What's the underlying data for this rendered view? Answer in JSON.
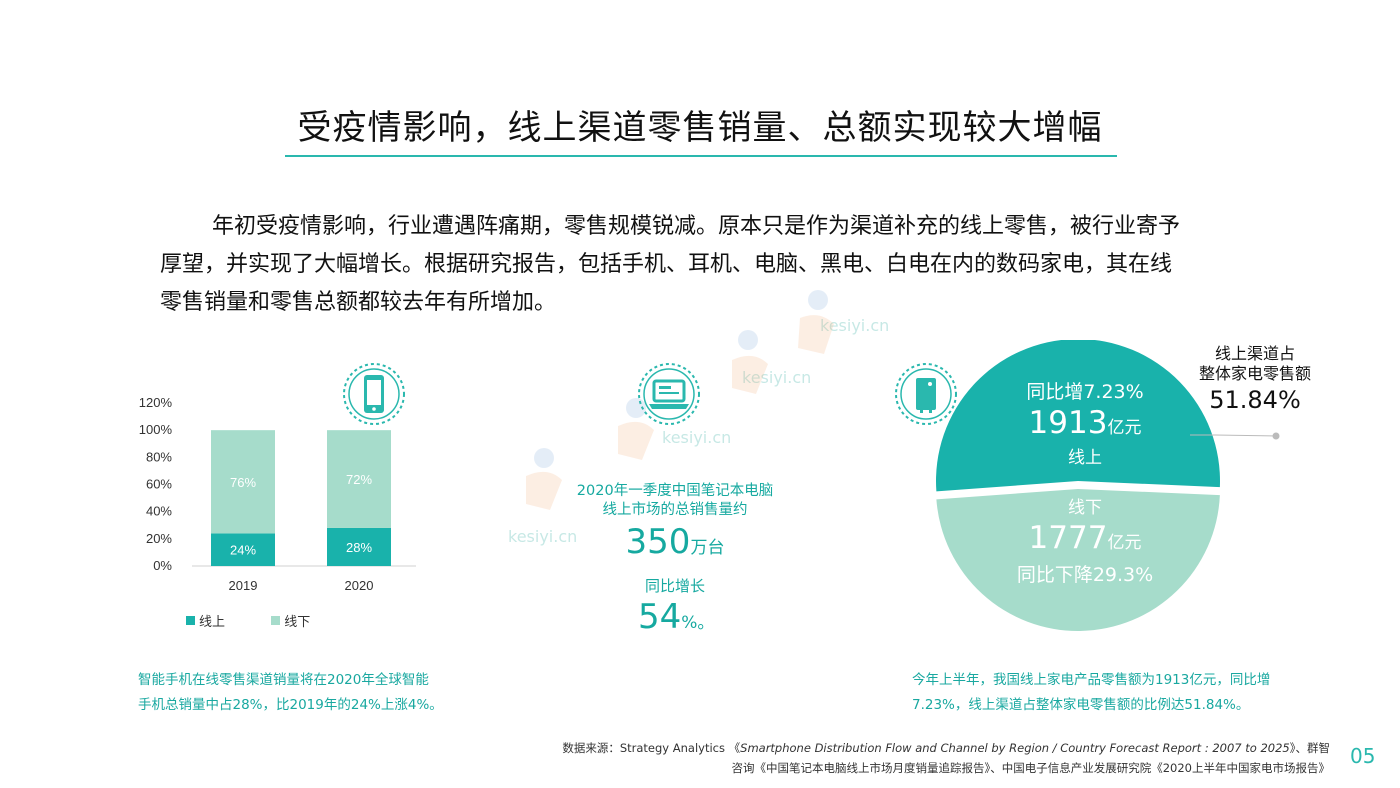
{
  "title": "受疫情影响，线上渠道零售销量、总额实现较大增幅",
  "paragraph": {
    "line1": "年初受疫情影响，行业遭遇阵痛期，零售规模锐减。原本只是作为渠道补充的线上零售，被行业寄予",
    "line2": "厚望，并实现了大幅增长。根据研究报告，包括手机、耳机、电脑、黑电、白电在内的数码家电，其在线",
    "line3": "零售销量和零售总额都较去年有所增加。"
  },
  "icons": {
    "left": "smartphone-icon",
    "middle": "laptop-icon",
    "right": "appliance-icon"
  },
  "watermark": "kesiyi.cn",
  "colors": {
    "accent": "#16a9a0",
    "online": "#19b2ab",
    "offline": "#a6dccb",
    "text": "#1a1a1a"
  },
  "chart_data": [
    {
      "type": "bar",
      "stacked": true,
      "categories": [
        "2019",
        "2020"
      ],
      "series": [
        {
          "name": "线上",
          "values": [
            24,
            28
          ],
          "labels": [
            "24%",
            "28%"
          ],
          "color": "#19b2ab"
        },
        {
          "name": "线下",
          "values": [
            76,
            72
          ],
          "labels": [
            "76%",
            "72%"
          ],
          "color": "#a6dccb"
        }
      ],
      "yticks": [
        "120%",
        "100%",
        "80%",
        "60%",
        "40%",
        "20%",
        "0%"
      ],
      "ylim": [
        0,
        120
      ],
      "legend": "bottom-left"
    },
    {
      "type": "pie",
      "slices": [
        {
          "name": "线上",
          "value": 1913,
          "share": 51.84,
          "color": "#19b2ab"
        },
        {
          "name": "线下",
          "value": 1777,
          "share": 48.16,
          "color": "#a6dccb"
        }
      ],
      "online": {
        "line1": "同比增7.23%",
        "amount": "1913",
        "unit": "亿元",
        "label": "线上"
      },
      "offline": {
        "label": "线下",
        "amount": "1777",
        "unit": "亿元",
        "line3": "同比下降29.3%"
      },
      "callout": {
        "line1": "线上渠道占",
        "line2": "整体家电零售额",
        "value": "51.84%"
      }
    }
  ],
  "middle": {
    "desc_line1": "2020年一季度中国笔记本电脑",
    "desc_line2": "线上市场的总销售量约",
    "big_value": "350",
    "big_unit": "万台",
    "growth_label": "同比增长",
    "growth_value": "54",
    "growth_unit": "%。"
  },
  "captions": {
    "left_line1": "智能手机在线零售渠道销量将在2020年全球智能",
    "left_line2": "手机总销量中占28%，比2019年的24%上涨4%。",
    "right_line1": "今年上半年，我国线上家电产品零售额为1913亿元，同比增",
    "right_line2": "7.23%，线上渠道占整体家电零售额的比例达51.84%。"
  },
  "source": {
    "prefix": "数据来源：Strategy Analytics 《",
    "italic": "Smartphone Distribution Flow and Channel by Region / Country Forecast Report : 2007 to 2025",
    "suffix": "》、群智咨询《中国笔记本电脑线上市场月度销量追踪报告》、中国电子信息产业发展研究院《2020上半年中国家电市场报告》"
  },
  "page_number": "05"
}
